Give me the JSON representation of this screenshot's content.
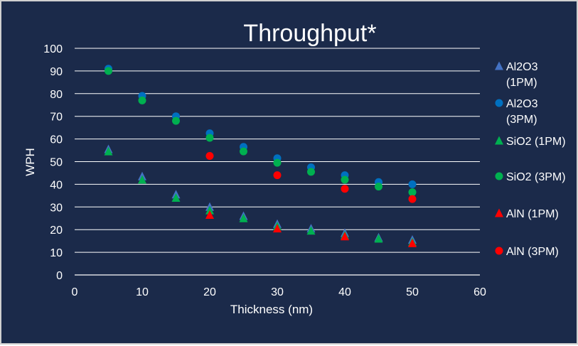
{
  "colors": {
    "background": "#1b2a4a",
    "gridline": "#ffffff",
    "axis_text": "#ffffff"
  },
  "chart_data": {
    "type": "scatter",
    "title": "Throughput*",
    "xlabel": "Thickness (nm)",
    "ylabel": "WPH",
    "xlim": [
      0,
      60
    ],
    "ylim": [
      0,
      100
    ],
    "x_ticks": [
      "0",
      "10",
      "20",
      "30",
      "40",
      "50",
      "60"
    ],
    "y_ticks": [
      "0",
      "10",
      "20",
      "30",
      "40",
      "50",
      "60",
      "70",
      "80",
      "90",
      "100"
    ],
    "grid": "horizontal",
    "legend_position": "right",
    "series": [
      {
        "name": "Al2O3 (1PM)",
        "marker": "triangle",
        "color": "#4472c4",
        "x": [
          5,
          10,
          15,
          20,
          25,
          30,
          35,
          40,
          45,
          50
        ],
        "y": [
          55.5,
          43.5,
          35.5,
          30,
          26,
          22.5,
          20.5,
          18.5,
          16.5,
          15.5
        ]
      },
      {
        "name": "Al2O3 (3PM)",
        "marker": "circle",
        "color": "#0070c0",
        "x": [
          5,
          10,
          15,
          20,
          25,
          30,
          35,
          40,
          45,
          50
        ],
        "y": [
          91,
          79,
          70,
          62.5,
          56.5,
          51.5,
          47.5,
          44,
          41,
          40
        ]
      },
      {
        "name": "SiO2 (1PM)",
        "marker": "triangle",
        "color": "#00b050",
        "x": [
          5,
          10,
          15,
          20,
          25,
          30,
          35,
          40,
          45,
          50
        ],
        "y": [
          54.5,
          42,
          34,
          28.5,
          25,
          21.5,
          19.5,
          17.5,
          16,
          14.5
        ]
      },
      {
        "name": "SiO2 (3PM)",
        "marker": "circle",
        "color": "#00b050",
        "x": [
          5,
          10,
          15,
          20,
          25,
          30,
          35,
          40,
          45,
          50
        ],
        "y": [
          90,
          77,
          68,
          60.5,
          54.5,
          49.5,
          45.5,
          42,
          39,
          36.5
        ]
      },
      {
        "name": "AlN (1PM)",
        "marker": "triangle",
        "color": "#ff0000",
        "x": [
          20,
          30,
          40,
          50
        ],
        "y": [
          26.5,
          20.5,
          17,
          14
        ]
      },
      {
        "name": "AlN (3PM)",
        "marker": "circle",
        "color": "#ff0000",
        "x": [
          20,
          30,
          40,
          50
        ],
        "y": [
          52.5,
          44,
          38,
          33.5
        ]
      }
    ]
  }
}
